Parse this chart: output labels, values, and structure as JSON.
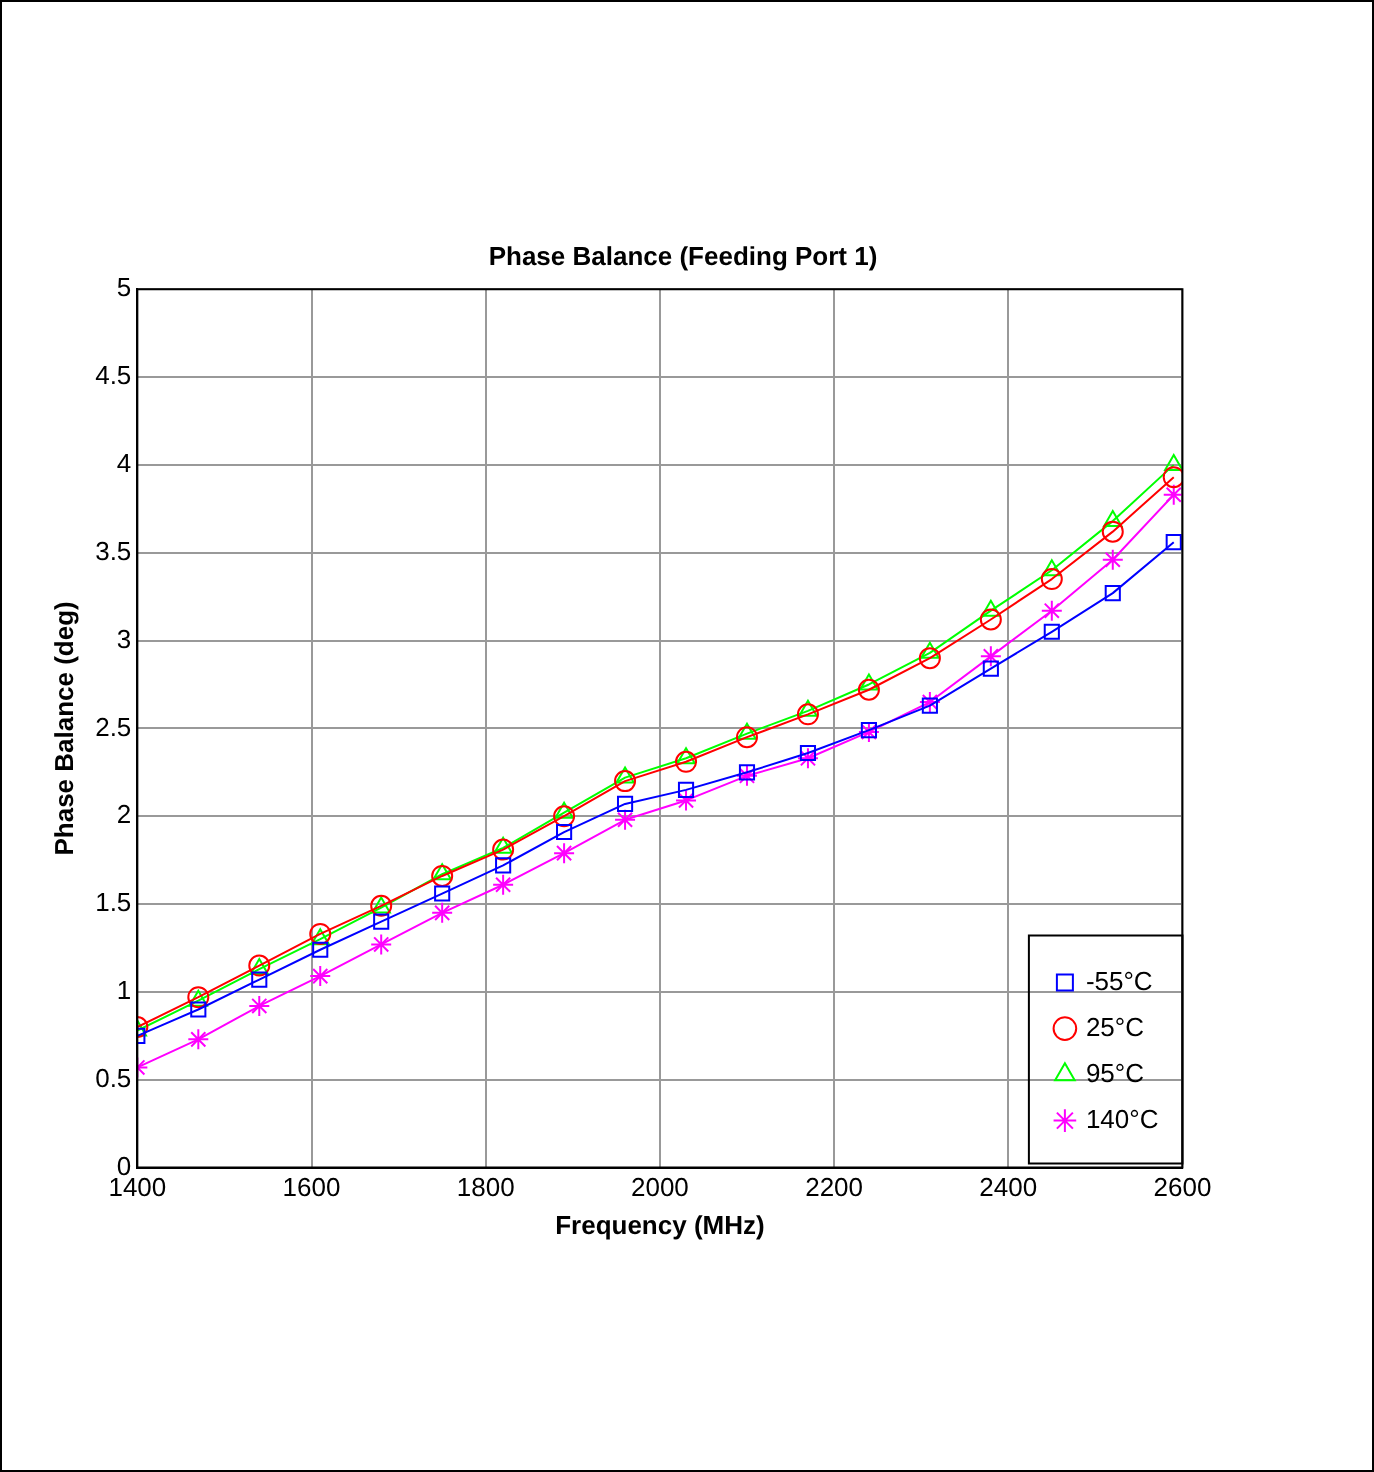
{
  "chart_data": {
    "type": "line",
    "title": "Phase Balance (Feeding Port 1)",
    "xlabel": "Frequency (MHz)",
    "ylabel": "Phase Balance (deg)",
    "x": [
      1400,
      1470,
      1540,
      1610,
      1680,
      1750,
      1820,
      1890,
      1960,
      2030,
      2100,
      2170,
      2240,
      2310,
      2380,
      2450,
      2520,
      2590
    ],
    "series": [
      {
        "name": "-55°C",
        "color": "#0000ff",
        "marker": "square",
        "values": [
          0.75,
          0.9,
          1.07,
          1.24,
          1.4,
          1.56,
          1.72,
          1.91,
          2.07,
          2.15,
          2.25,
          2.36,
          2.49,
          2.63,
          2.84,
          3.05,
          3.27,
          3.56
        ]
      },
      {
        "name": "25°C",
        "color": "#ff0000",
        "marker": "circle",
        "values": [
          0.8,
          0.97,
          1.15,
          1.33,
          1.49,
          1.66,
          1.81,
          2.0,
          2.2,
          2.31,
          2.45,
          2.58,
          2.72,
          2.9,
          3.12,
          3.35,
          3.62,
          3.93
        ]
      },
      {
        "name": "95°C",
        "color": "#00ff00",
        "marker": "triangle",
        "values": [
          0.78,
          0.95,
          1.13,
          1.3,
          1.48,
          1.67,
          1.82,
          2.02,
          2.22,
          2.33,
          2.47,
          2.6,
          2.75,
          2.93,
          3.17,
          3.4,
          3.68,
          4.0
        ]
      },
      {
        "name": "140°C",
        "color": "#ff00ff",
        "marker": "cross",
        "values": [
          0.57,
          0.73,
          0.92,
          1.09,
          1.27,
          1.45,
          1.61,
          1.79,
          1.98,
          2.09,
          2.23,
          2.33,
          2.48,
          2.65,
          2.91,
          3.17,
          3.46,
          3.83
        ]
      }
    ],
    "xlim": [
      1400,
      2600
    ],
    "xticks": [
      1400,
      1600,
      1800,
      2000,
      2200,
      2400,
      2600
    ],
    "ylim": [
      0,
      5
    ],
    "yticks": [
      0,
      0.5,
      1,
      1.5,
      2,
      2.5,
      3,
      3.5,
      4,
      4.5,
      5
    ],
    "grid": true,
    "legend": "bottom right",
    "line_style": "solid"
  }
}
